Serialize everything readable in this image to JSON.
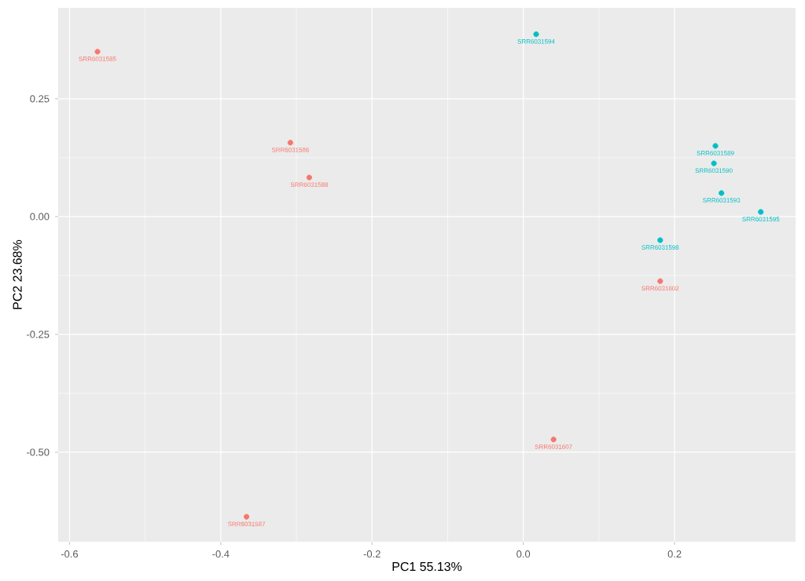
{
  "chart_data": {
    "type": "scatter",
    "xlabel": "PC1  55.13%",
    "ylabel": "PC2  23.68%",
    "xlim": [
      -0.615,
      0.36
    ],
    "ylim": [
      -0.69,
      0.443
    ],
    "xticks": [
      -0.6,
      -0.4,
      -0.2,
      {
        "value": 0,
        "label": "0.0"
      },
      0.2
    ],
    "yticks": [
      {
        "value": -0.5,
        "label": "-0.50"
      },
      -0.25,
      {
        "value": 0,
        "label": "0.00"
      },
      0.25
    ],
    "grid": true,
    "series": [
      {
        "color": "#f8766d",
        "x": [
          -0.563,
          -0.308,
          -0.283,
          -0.366,
          0.181,
          0.04
        ],
        "values": [
          0.35,
          0.157,
          0.083,
          -0.637,
          -0.137,
          -0.473
        ]
      },
      {
        "color": "#00bfc4",
        "x": [
          0.017,
          0.254,
          0.252,
          0.262,
          0.314,
          0.181
        ],
        "values": [
          0.387,
          0.15,
          0.113,
          0.05,
          0.01,
          -0.05
        ]
      }
    ],
    "annotations": [
      {
        "text": "SRR6031585",
        "x": -0.563,
        "y": 0.35
      },
      {
        "text": "SRR6031586",
        "x": -0.308,
        "y": 0.157
      },
      {
        "text": "SRR6031588",
        "x": -0.283,
        "y": 0.083
      },
      {
        "text": "SRR6031587",
        "x": -0.366,
        "y": -0.637
      },
      {
        "text": "SRR6031602",
        "x": 0.181,
        "y": -0.137
      },
      {
        "text": "SRR6031607",
        "x": 0.04,
        "y": -0.473
      },
      {
        "text": "SRR6031594",
        "x": 0.017,
        "y": 0.387
      },
      {
        "text": "SRR6031589",
        "x": 0.254,
        "y": 0.15
      },
      {
        "text": "SRR6031590",
        "x": 0.252,
        "y": 0.113
      },
      {
        "text": "SRR6031593",
        "x": 0.262,
        "y": 0.05
      },
      {
        "text": "SRR6031595",
        "x": 0.314,
        "y": 0.01
      },
      {
        "text": "SRR6031598",
        "x": 0.181,
        "y": -0.05
      }
    ]
  }
}
